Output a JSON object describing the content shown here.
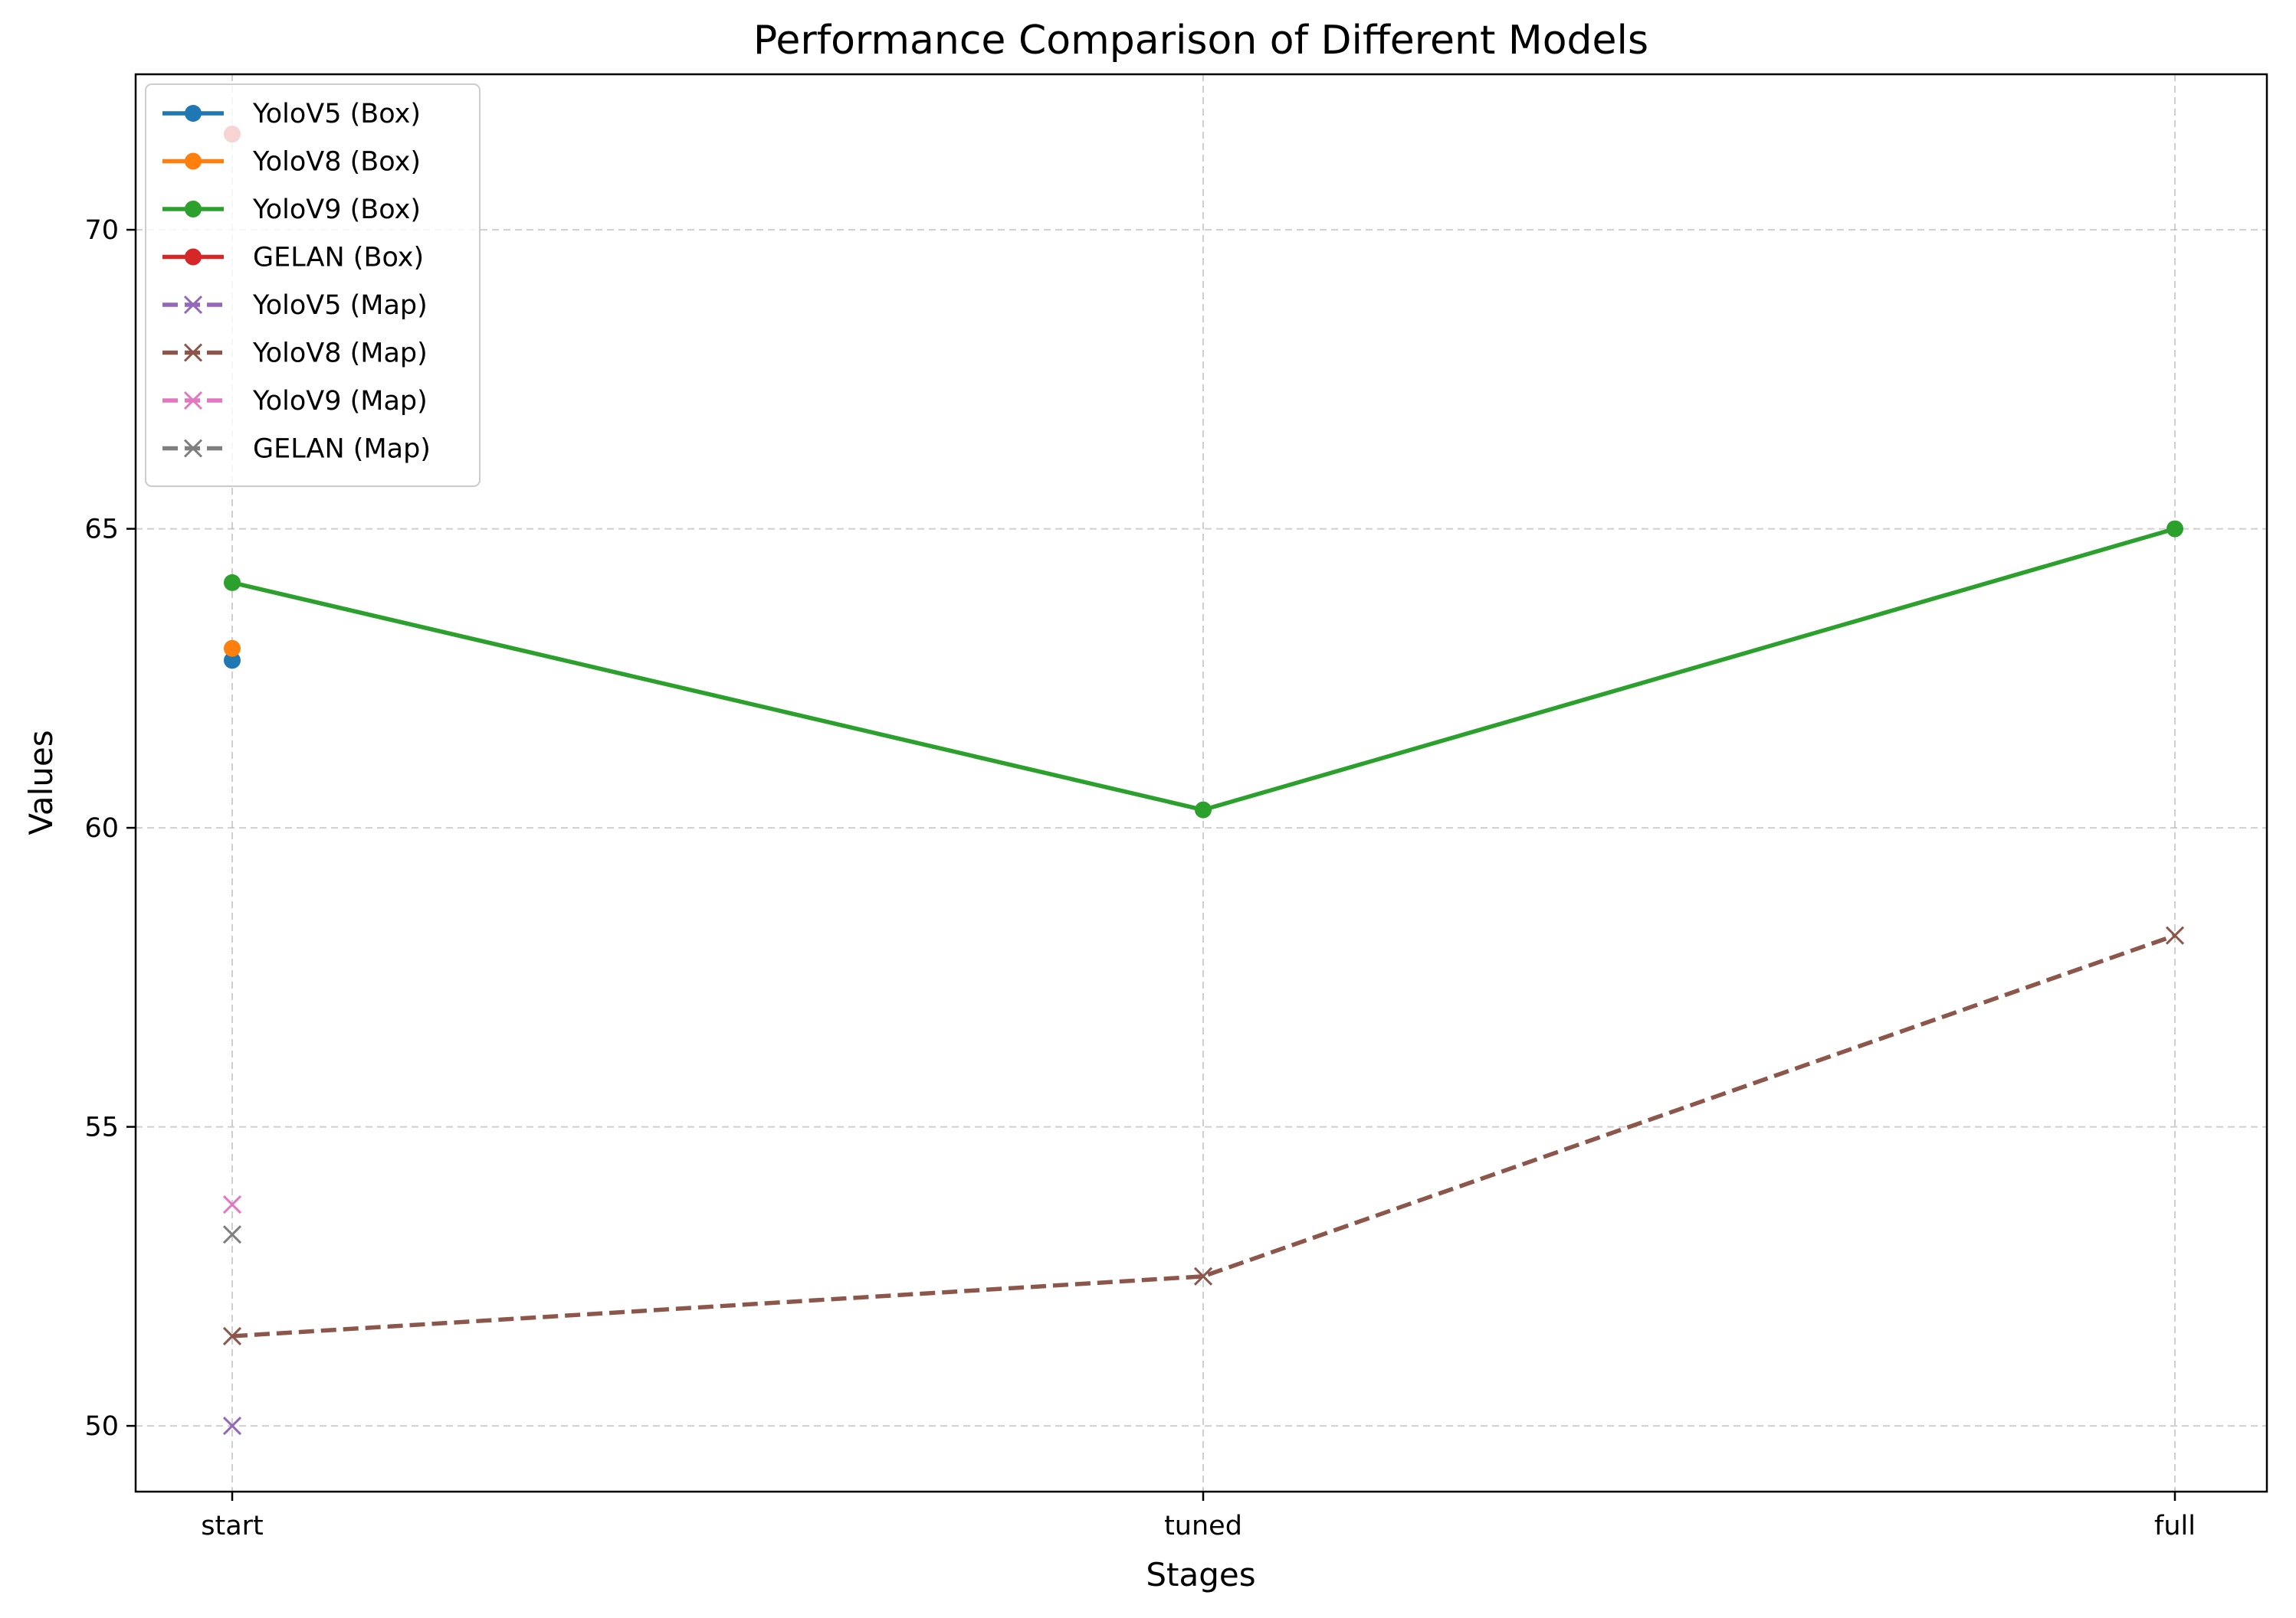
{
  "chart_data": {
    "type": "line",
    "title": "Performance Comparison of Different Models",
    "xlabel": "Stages",
    "ylabel": "Values",
    "categories": [
      "start",
      "tuned",
      "full"
    ],
    "ylim": [
      48.9,
      72.6
    ],
    "yticks": [
      50,
      55,
      60,
      65,
      70
    ],
    "grid": true,
    "legend_position": "upper-left",
    "series": [
      {
        "name": "YoloV5 (Box)",
        "values": [
          62.8,
          null,
          null
        ],
        "color": "#1f77b4",
        "marker": "circle",
        "linestyle": "solid"
      },
      {
        "name": "YoloV8 (Box)",
        "values": [
          63.0,
          null,
          null
        ],
        "color": "#ff7f0e",
        "marker": "circle",
        "linestyle": "solid"
      },
      {
        "name": "YoloV9 (Box)",
        "values": [
          64.1,
          60.3,
          65.0
        ],
        "color": "#2ca02c",
        "marker": "circle",
        "linestyle": "solid"
      },
      {
        "name": "GELAN (Box)",
        "values": [
          71.6,
          null,
          null
        ],
        "color": "#d62728",
        "marker": "circle",
        "linestyle": "solid"
      },
      {
        "name": "YoloV5 (Map)",
        "values": [
          50.0,
          null,
          null
        ],
        "color": "#9467bd",
        "marker": "x",
        "linestyle": "dashed"
      },
      {
        "name": "YoloV8 (Map)",
        "values": [
          51.5,
          52.5,
          58.2
        ],
        "color": "#8c564b",
        "marker": "x",
        "linestyle": "dashed"
      },
      {
        "name": "YoloV9 (Map)",
        "values": [
          53.7,
          null,
          null
        ],
        "color": "#e377c2",
        "marker": "x",
        "linestyle": "dashed"
      },
      {
        "name": "GELAN (Map)",
        "values": [
          53.2,
          null,
          null
        ],
        "color": "#7f7f7f",
        "marker": "x",
        "linestyle": "dashed"
      }
    ]
  }
}
